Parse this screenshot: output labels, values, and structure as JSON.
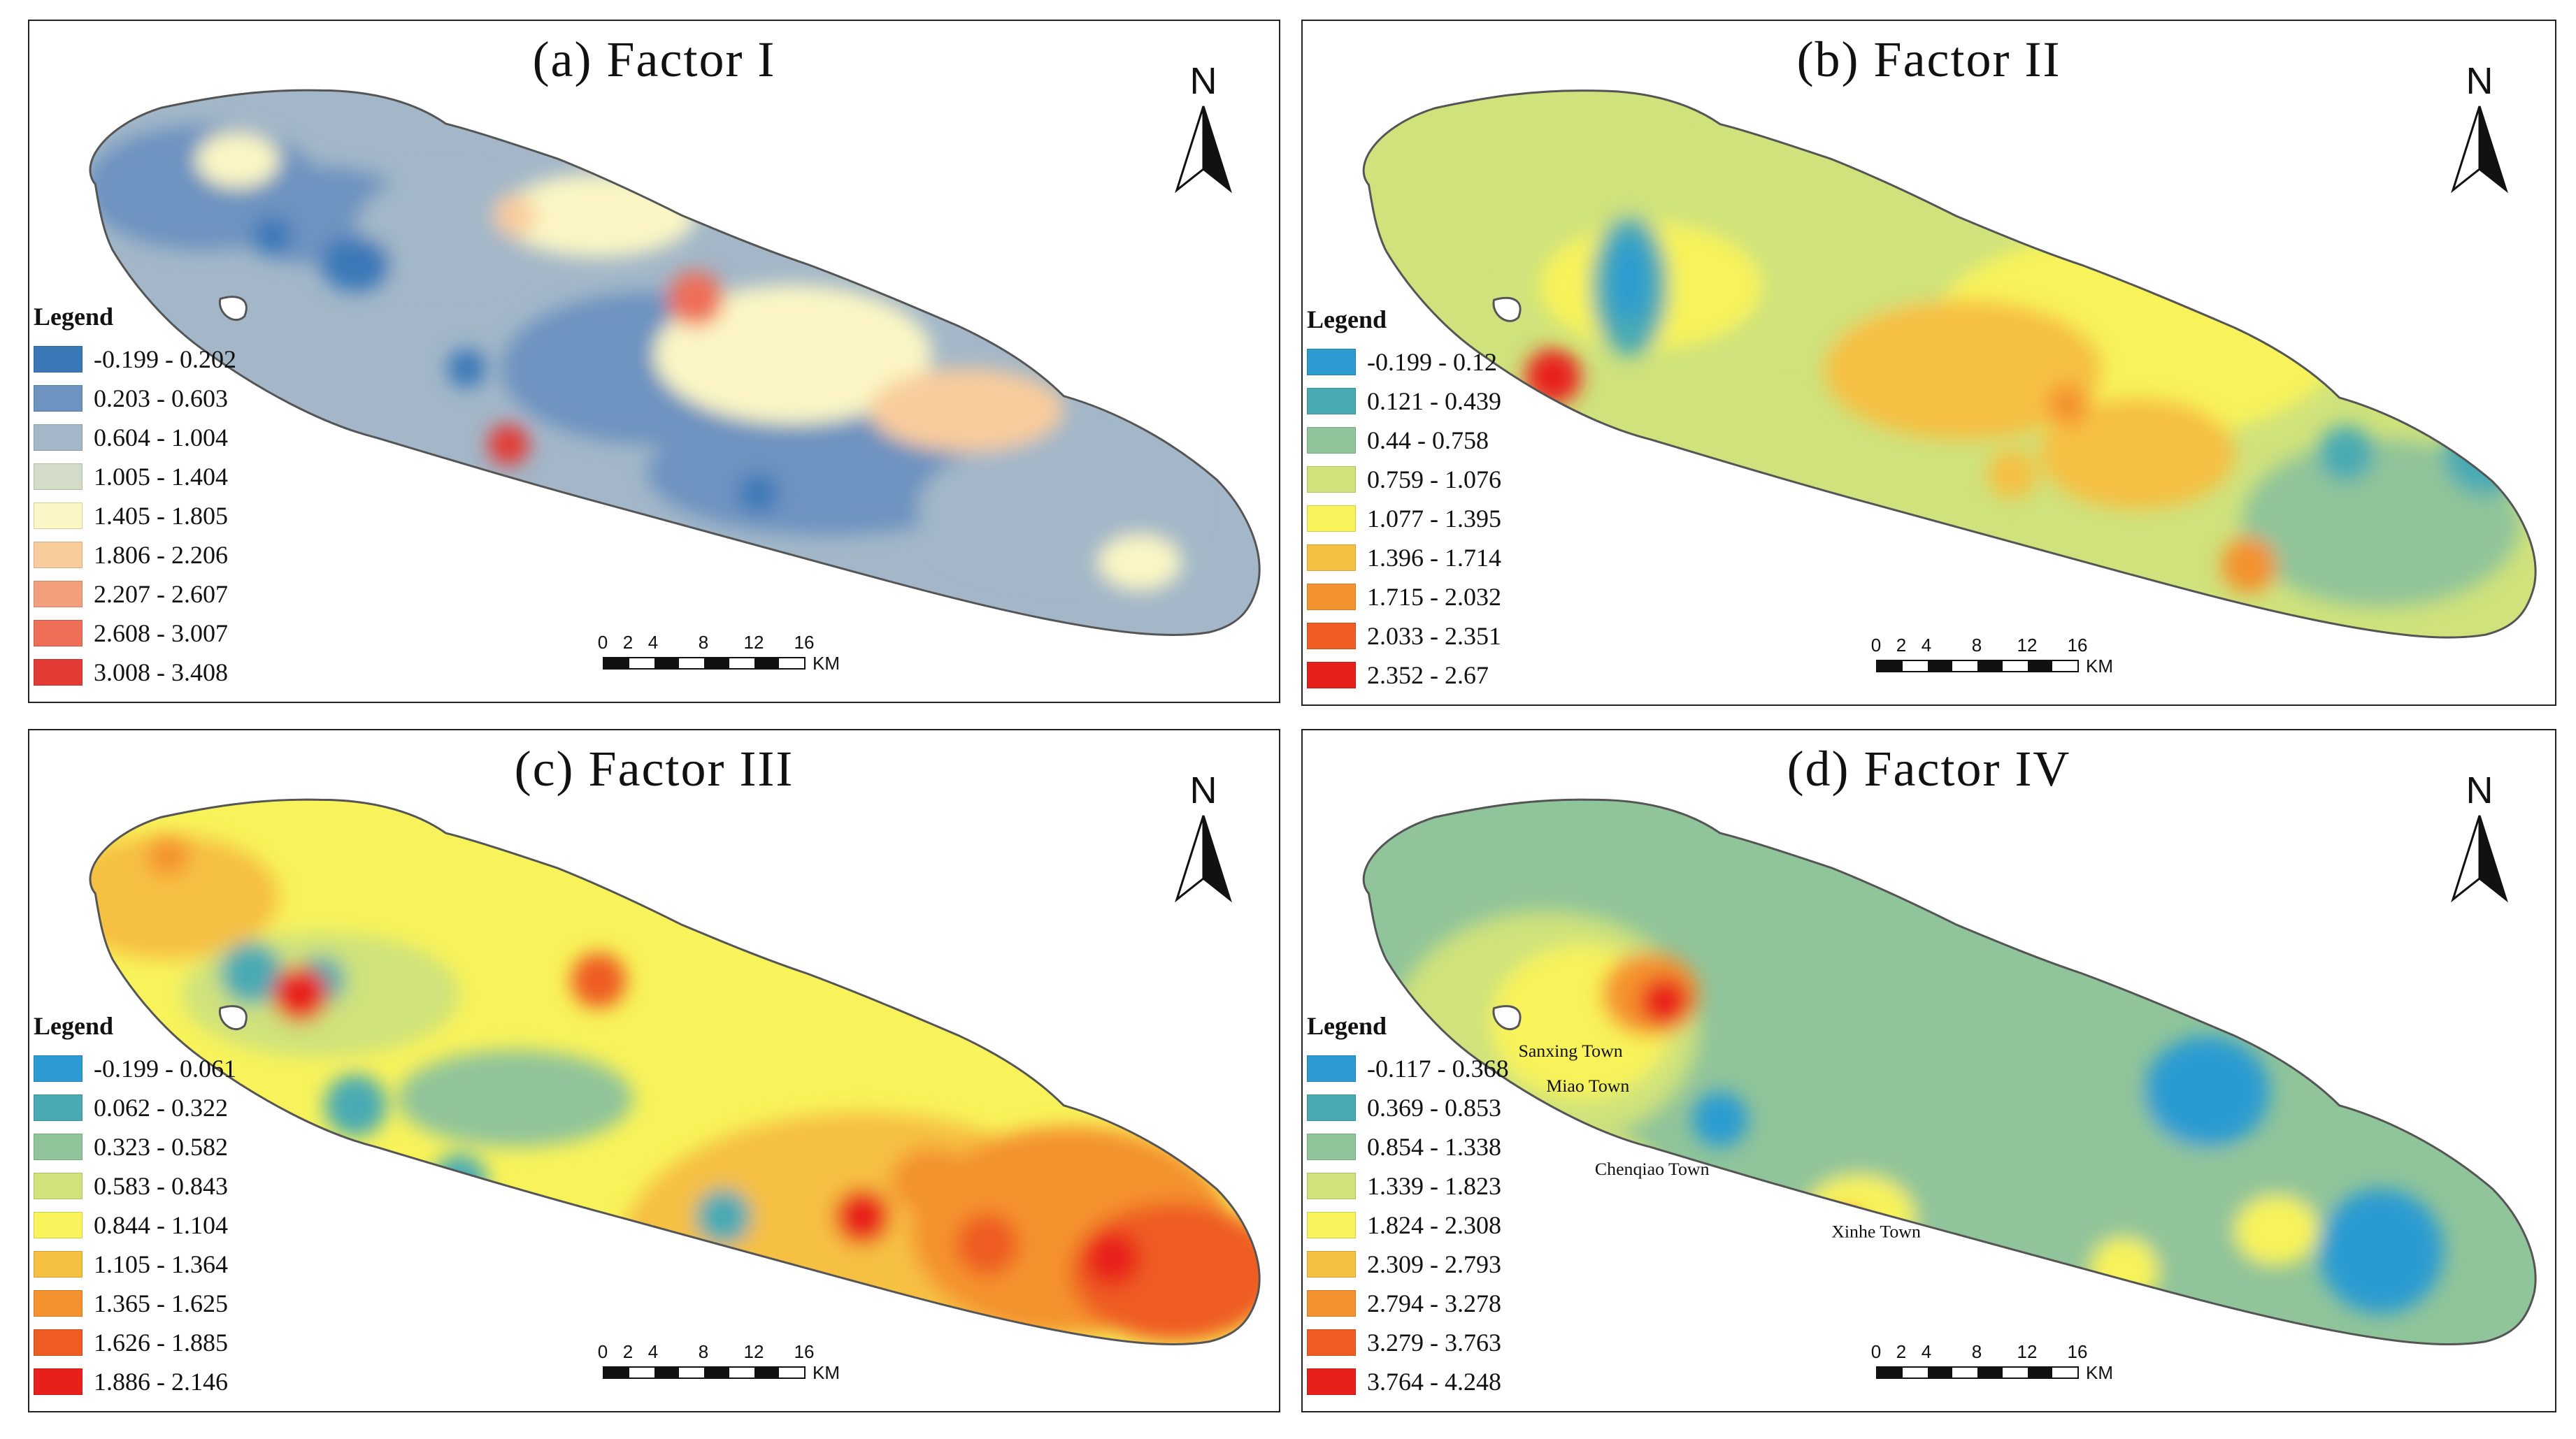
{
  "legend_title": "Legend",
  "north_label": "N",
  "scale": {
    "ticks": [
      "0",
      "2",
      "4",
      "8",
      "12",
      "16"
    ],
    "unit": "KM"
  },
  "panels": [
    {
      "title": "(a) Factor I",
      "legend": [
        {
          "label": "-0.199 - 0.202",
          "color": "#3a78b8"
        },
        {
          "label": "0.203 - 0.603",
          "color": "#6d93c0"
        },
        {
          "label": "0.604 - 1.004",
          "color": "#a3b7c8"
        },
        {
          "label": "1.005 - 1.404",
          "color": "#d2dcc8"
        },
        {
          "label": "1.405 - 1.805",
          "color": "#fbf6c4"
        },
        {
          "label": "1.806 - 2.206",
          "color": "#f9cc9c"
        },
        {
          "label": "2.207 - 2.607",
          "color": "#f49f7c"
        },
        {
          "label": "2.608 - 3.007",
          "color": "#ee6e58"
        },
        {
          "label": "3.008 - 3.408",
          "color": "#e43a35"
        }
      ]
    },
    {
      "title": "(b) Factor II",
      "legend": [
        {
          "label": "-0.199 - 0.12",
          "color": "#2b9bd1"
        },
        {
          "label": "0.121 - 0.439",
          "color": "#4aaab4"
        },
        {
          "label": "0.44 - 0.758",
          "color": "#90c49a"
        },
        {
          "label": "0.759 - 1.076",
          "color": "#cfe27c"
        },
        {
          "label": "1.077 - 1.395",
          "color": "#f8f35a"
        },
        {
          "label": "1.396 - 1.714",
          "color": "#f6c043"
        },
        {
          "label": "1.715 - 2.032",
          "color": "#f4922f"
        },
        {
          "label": "2.033 - 2.351",
          "color": "#ee5c22"
        },
        {
          "label": "2.352 - 2.67",
          "color": "#e8201c"
        }
      ]
    },
    {
      "title": "(c) Factor III",
      "legend": [
        {
          "label": "-0.199 - 0.061",
          "color": "#2b9bd1"
        },
        {
          "label": "0.062 - 0.322",
          "color": "#4aaab4"
        },
        {
          "label": "0.323 - 0.582",
          "color": "#90c49a"
        },
        {
          "label": "0.583 - 0.843",
          "color": "#cfe27c"
        },
        {
          "label": "0.844 - 1.104",
          "color": "#f8f35a"
        },
        {
          "label": "1.105 - 1.364",
          "color": "#f6c043"
        },
        {
          "label": "1.365 - 1.625",
          "color": "#f4922f"
        },
        {
          "label": "1.626 - 1.885",
          "color": "#ee5c22"
        },
        {
          "label": "1.886 - 2.146",
          "color": "#e8201c"
        }
      ]
    },
    {
      "title": "(d) Factor IV",
      "towns": [
        "Sanxing Town",
        "Miao Town",
        "Chenqiao Town",
        "Xinhe Town"
      ],
      "legend": [
        {
          "label": "-0.117 - 0.368",
          "color": "#2b9bd1"
        },
        {
          "label": "0.369 - 0.853",
          "color": "#4aaab4"
        },
        {
          "label": "0.854 - 1.338",
          "color": "#90c49a"
        },
        {
          "label": "1.339 - 1.823",
          "color": "#cfe27c"
        },
        {
          "label": "1.824 - 2.308",
          "color": "#f8f35a"
        },
        {
          "label": "2.309 - 2.793",
          "color": "#f6c043"
        },
        {
          "label": "2.794 - 3.278",
          "color": "#f4922f"
        },
        {
          "label": "3.279 - 3.763",
          "color": "#ee5c22"
        },
        {
          "label": "3.764 - 4.248",
          "color": "#e8201c"
        }
      ]
    }
  ]
}
